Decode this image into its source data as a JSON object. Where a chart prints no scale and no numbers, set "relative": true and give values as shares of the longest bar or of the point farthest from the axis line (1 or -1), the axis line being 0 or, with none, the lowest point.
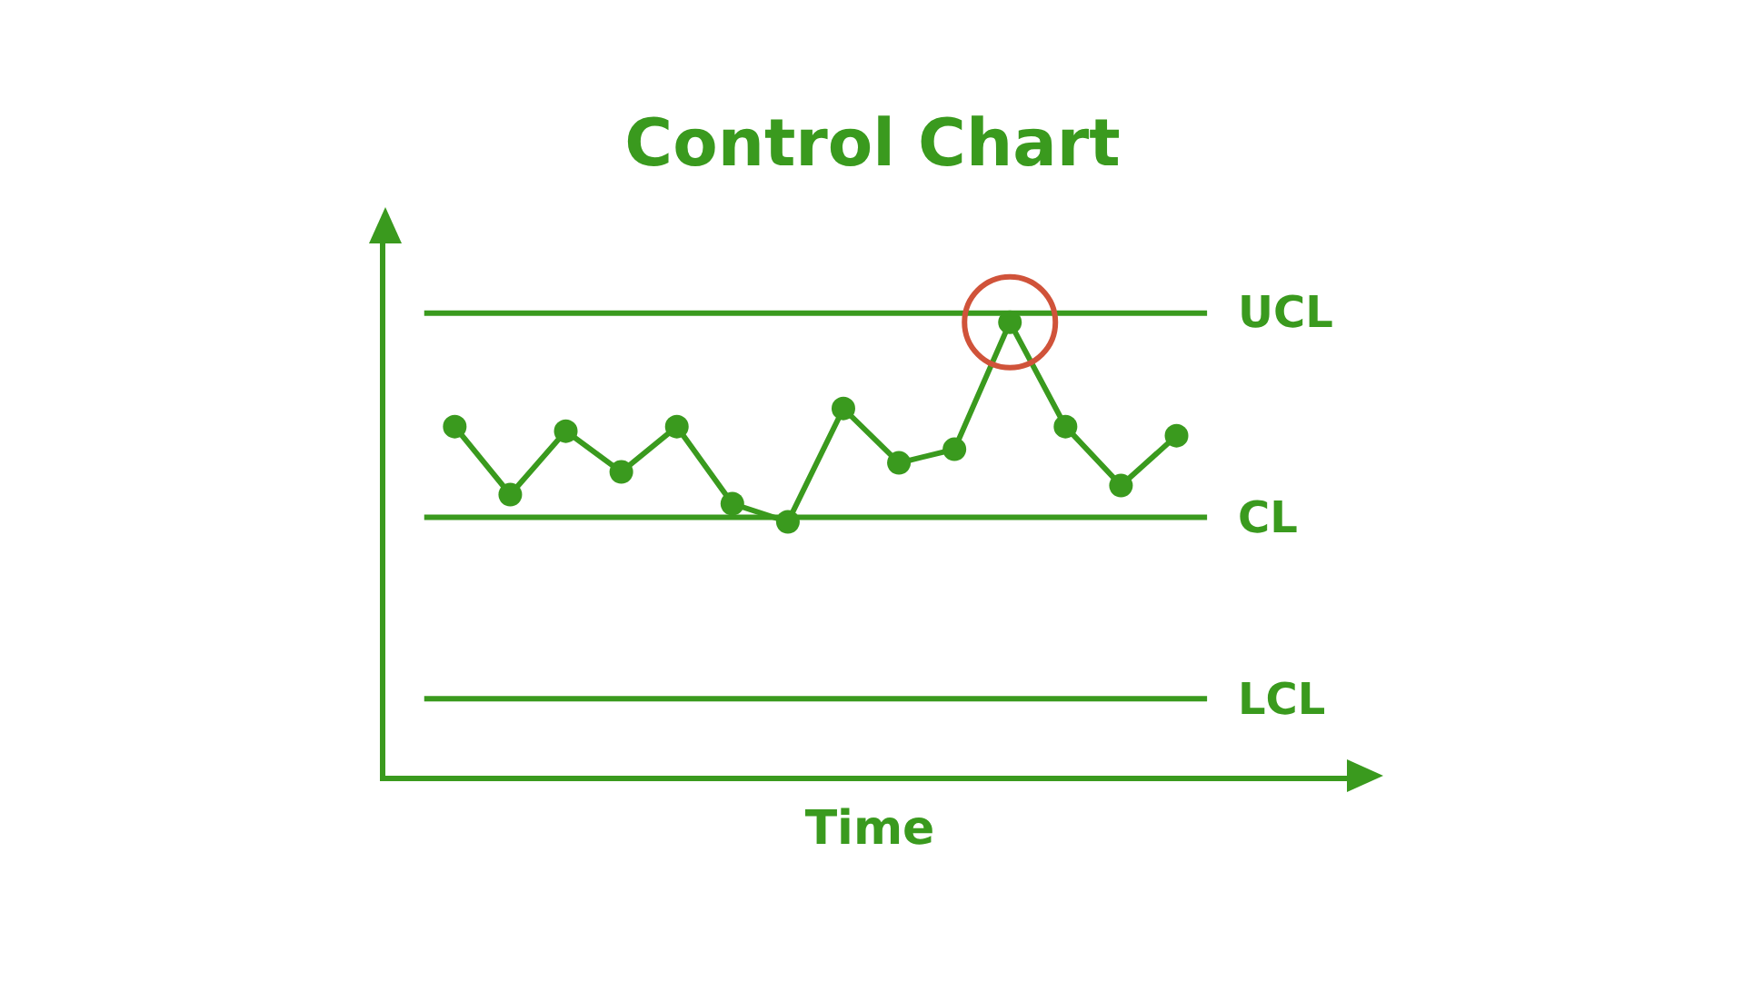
{
  "chart_data": {
    "type": "line",
    "title": "Control Chart",
    "xlabel": "Time",
    "relative": true,
    "categories": [
      null,
      null,
      null,
      null,
      null,
      null,
      null,
      null,
      null,
      null,
      null,
      null,
      null,
      null
    ],
    "series": [
      {
        "color": "#3a9a1e",
        "values": [
          0.77,
          0.62,
          0.76,
          0.67,
          0.77,
          0.6,
          0.56,
          0.81,
          0.69,
          0.72,
          1.0,
          0.77,
          0.64,
          0.75
        ]
      }
    ],
    "marker": "circle",
    "line_style": "solid",
    "grid": false,
    "ref_lines": [
      {
        "axis": "y",
        "value": 1.02,
        "label": "UCL",
        "color": "#3a9a1e"
      },
      {
        "axis": "y",
        "value": 0.57,
        "label": "CL",
        "color": "#3a9a1e"
      },
      {
        "axis": "y",
        "value": 0.17,
        "label": "LCL",
        "color": "#3a9a1e"
      }
    ]
  }
}
